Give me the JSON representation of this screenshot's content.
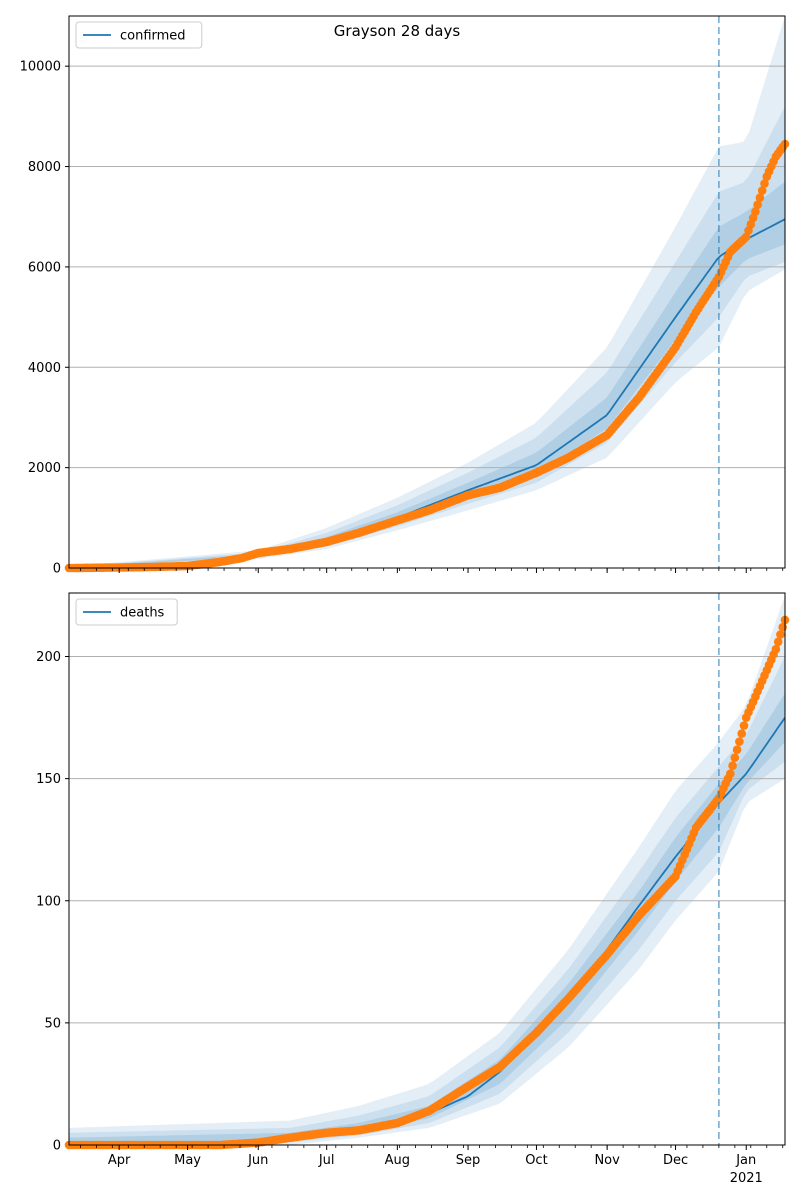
{
  "title": "Grayson 28 days",
  "colors": {
    "line": "#1f77b4",
    "observed": "#ff7f0e",
    "band": "#1f77b4",
    "grid": "#b0b0b0",
    "cutoff": "#1f77b4"
  },
  "x_month_labels": [
    "Apr",
    "May",
    "Jun",
    "Jul",
    "Aug",
    "Sep",
    "Oct",
    "Nov",
    "Dec",
    "Jan"
  ],
  "x_year_label": "2021",
  "chart_data": [
    {
      "type": "line",
      "legend": "confirmed",
      "legend_position": "top-left",
      "grid": "horizontal",
      "x_range": [
        "2020-03-10",
        "2021-01-18"
      ],
      "forecast_start": "2020-12-20",
      "ylim": [
        0,
        11000
      ],
      "y_ticks": [
        0,
        2000,
        4000,
        6000,
        8000,
        10000
      ],
      "model_median": [
        [
          "2020-03-10",
          0
        ],
        [
          "2020-04-15",
          10
        ],
        [
          "2020-05-15",
          60
        ],
        [
          "2020-06-01",
          250
        ],
        [
          "2020-07-01",
          550
        ],
        [
          "2020-08-01",
          1000
        ],
        [
          "2020-09-01",
          1550
        ],
        [
          "2020-10-01",
          2050
        ],
        [
          "2020-11-01",
          3050
        ],
        [
          "2020-12-01",
          5000
        ],
        [
          "2020-12-20",
          6200
        ],
        [
          "2021-01-01",
          6550
        ],
        [
          "2021-01-18",
          6950
        ]
      ],
      "bands": [
        {
          "lower": [
            [
              "2020-03-10",
              0
            ],
            [
              "2020-06-01",
              180
            ],
            [
              "2020-07-01",
              380
            ],
            [
              "2020-08-01",
              750
            ],
            [
              "2020-09-01",
              1150
            ],
            [
              "2020-10-01",
              1550
            ],
            [
              "2020-11-01",
              2200
            ],
            [
              "2020-12-01",
              3700
            ],
            [
              "2020-12-20",
              4400
            ],
            [
              "2021-01-01",
              5500
            ],
            [
              "2021-01-18",
              5950
            ]
          ],
          "upper": [
            [
              "2020-03-10",
              30
            ],
            [
              "2020-06-01",
              350
            ],
            [
              "2020-07-01",
              800
            ],
            [
              "2020-08-01",
              1400
            ],
            [
              "2020-09-01",
              2100
            ],
            [
              "2020-10-01",
              2900
            ],
            [
              "2020-11-01",
              4400
            ],
            [
              "2020-12-01",
              6800
            ],
            [
              "2020-12-20",
              8400
            ],
            [
              "2021-01-01",
              8500
            ],
            [
              "2021-01-18",
              11000
            ]
          ]
        },
        {
          "lower": [
            [
              "2020-03-10",
              0
            ],
            [
              "2020-06-01",
              200
            ],
            [
              "2020-07-01",
              430
            ],
            [
              "2020-08-01",
              830
            ],
            [
              "2020-09-01",
              1280
            ],
            [
              "2020-10-01",
              1700
            ],
            [
              "2020-11-01",
              2500
            ],
            [
              "2020-12-01",
              4100
            ],
            [
              "2020-12-20",
              5000
            ],
            [
              "2021-01-01",
              5800
            ],
            [
              "2021-01-18",
              6100
            ]
          ],
          "upper": [
            [
              "2020-03-10",
              20
            ],
            [
              "2020-06-01",
              310
            ],
            [
              "2020-07-01",
              700
            ],
            [
              "2020-08-01",
              1250
            ],
            [
              "2020-09-01",
              1900
            ],
            [
              "2020-10-01",
              2600
            ],
            [
              "2020-11-01",
              3900
            ],
            [
              "2020-12-01",
              6100
            ],
            [
              "2020-12-20",
              7500
            ],
            [
              "2021-01-01",
              7700
            ],
            [
              "2021-01-18",
              9200
            ]
          ]
        },
        {
          "lower": [
            [
              "2020-03-10",
              0
            ],
            [
              "2020-06-01",
              225
            ],
            [
              "2020-07-01",
              490
            ],
            [
              "2020-08-01",
              910
            ],
            [
              "2020-09-01",
              1420
            ],
            [
              "2020-10-01",
              1880
            ],
            [
              "2020-11-01",
              2780
            ],
            [
              "2020-12-01",
              4550
            ],
            [
              "2020-12-20",
              5600
            ],
            [
              "2021-01-01",
              6150
            ],
            [
              "2021-01-18",
              6450
            ]
          ],
          "upper": [
            [
              "2020-03-10",
              12
            ],
            [
              "2020-06-01",
              280
            ],
            [
              "2020-07-01",
              620
            ],
            [
              "2020-08-01",
              1110
            ],
            [
              "2020-09-01",
              1700
            ],
            [
              "2020-10-01",
              2300
            ],
            [
              "2020-11-01",
              3400
            ],
            [
              "2020-12-01",
              5500
            ],
            [
              "2020-12-20",
              6800
            ],
            [
              "2021-01-01",
              7100
            ],
            [
              "2021-01-18",
              7700
            ]
          ]
        }
      ],
      "observed": [
        [
          "2020-03-10",
          0
        ],
        [
          "2020-04-01",
          10
        ],
        [
          "2020-04-15",
          20
        ],
        [
          "2020-05-01",
          40
        ],
        [
          "2020-05-15",
          120
        ],
        [
          "2020-05-25",
          200
        ],
        [
          "2020-06-01",
          300
        ],
        [
          "2020-06-15",
          380
        ],
        [
          "2020-07-01",
          520
        ],
        [
          "2020-07-15",
          700
        ],
        [
          "2020-08-01",
          950
        ],
        [
          "2020-08-15",
          1150
        ],
        [
          "2020-09-01",
          1450
        ],
        [
          "2020-09-15",
          1600
        ],
        [
          "2020-10-01",
          1900
        ],
        [
          "2020-10-15",
          2200
        ],
        [
          "2020-11-01",
          2650
        ],
        [
          "2020-11-15",
          3400
        ],
        [
          "2020-12-01",
          4400
        ],
        [
          "2020-12-10",
          5100
        ],
        [
          "2020-12-20",
          5800
        ],
        [
          "2020-12-25",
          6300
        ],
        [
          "2021-01-01",
          6600
        ],
        [
          "2021-01-05",
          7100
        ],
        [
          "2021-01-10",
          7800
        ],
        [
          "2021-01-14",
          8200
        ],
        [
          "2021-01-18",
          8450
        ]
      ]
    },
    {
      "type": "line",
      "legend": "deaths",
      "legend_position": "top-left",
      "grid": "horizontal",
      "x_range": [
        "2020-03-10",
        "2021-01-18"
      ],
      "forecast_start": "2020-12-20",
      "ylim": [
        0,
        226
      ],
      "y_ticks": [
        0,
        50,
        100,
        150,
        200
      ],
      "model_median": [
        [
          "2020-03-10",
          0
        ],
        [
          "2020-05-15",
          1
        ],
        [
          "2020-06-15",
          3
        ],
        [
          "2020-07-15",
          7
        ],
        [
          "2020-08-15",
          13
        ],
        [
          "2020-09-01",
          20
        ],
        [
          "2020-09-15",
          30
        ],
        [
          "2020-10-01",
          45
        ],
        [
          "2020-10-15",
          60
        ],
        [
          "2020-11-01",
          80
        ],
        [
          "2020-11-15",
          98
        ],
        [
          "2020-12-01",
          118
        ],
        [
          "2020-12-20",
          140
        ],
        [
          "2021-01-01",
          152
        ],
        [
          "2021-01-18",
          175
        ]
      ],
      "bands": [
        {
          "lower": [
            [
              "2020-03-10",
              0
            ],
            [
              "2020-06-15",
              0
            ],
            [
              "2020-07-15",
              3
            ],
            [
              "2020-08-15",
              7
            ],
            [
              "2020-09-15",
              17
            ],
            [
              "2020-10-15",
              40
            ],
            [
              "2020-11-15",
              72
            ],
            [
              "2020-12-01",
              92
            ],
            [
              "2020-12-20",
              112
            ],
            [
              "2021-01-01",
              140
            ],
            [
              "2021-01-18",
              150
            ]
          ],
          "upper": [
            [
              "2020-03-10",
              7
            ],
            [
              "2020-06-15",
              10
            ],
            [
              "2020-07-15",
              16
            ],
            [
              "2020-08-15",
              25
            ],
            [
              "2020-09-15",
              46
            ],
            [
              "2020-10-15",
              80
            ],
            [
              "2020-11-15",
              122
            ],
            [
              "2020-12-01",
              145
            ],
            [
              "2020-12-20",
              165
            ],
            [
              "2021-01-01",
              180
            ],
            [
              "2021-01-18",
              225
            ]
          ]
        },
        {
          "lower": [
            [
              "2020-03-10",
              0
            ],
            [
              "2020-06-15",
              1
            ],
            [
              "2020-07-15",
              4
            ],
            [
              "2020-08-15",
              9
            ],
            [
              "2020-09-15",
              21
            ],
            [
              "2020-10-15",
              46
            ],
            [
              "2020-11-15",
              80
            ],
            [
              "2020-12-01",
              100
            ],
            [
              "2020-12-20",
              120
            ],
            [
              "2021-01-01",
              145
            ],
            [
              "2021-01-18",
              157
            ]
          ],
          "upper": [
            [
              "2020-03-10",
              5
            ],
            [
              "2020-06-15",
              7
            ],
            [
              "2020-07-15",
              12
            ],
            [
              "2020-08-15",
              20
            ],
            [
              "2020-09-15",
              40
            ],
            [
              "2020-10-15",
              72
            ],
            [
              "2020-11-15",
              112
            ],
            [
              "2020-12-01",
              134
            ],
            [
              "2020-12-20",
              155
            ],
            [
              "2021-01-01",
              168
            ],
            [
              "2021-01-18",
              200
            ]
          ]
        },
        {
          "lower": [
            [
              "2020-03-10",
              0
            ],
            [
              "2020-06-15",
              2
            ],
            [
              "2020-07-15",
              5
            ],
            [
              "2020-08-15",
              11
            ],
            [
              "2020-09-15",
              25
            ],
            [
              "2020-10-15",
              52
            ],
            [
              "2020-11-15",
              88
            ],
            [
              "2020-12-01",
              108
            ],
            [
              "2020-12-20",
              130
            ],
            [
              "2021-01-01",
              148
            ],
            [
              "2021-01-18",
              165
            ]
          ],
          "upper": [
            [
              "2020-03-10",
              3
            ],
            [
              "2020-06-15",
              5
            ],
            [
              "2020-07-15",
              9
            ],
            [
              "2020-08-15",
              16
            ],
            [
              "2020-09-15",
              35
            ],
            [
              "2020-10-15",
              66
            ],
            [
              "2020-11-15",
              104
            ],
            [
              "2020-12-01",
              126
            ],
            [
              "2020-12-20",
              148
            ],
            [
              "2021-01-01",
              160
            ],
            [
              "2021-01-18",
              185
            ]
          ]
        }
      ],
      "observed": [
        [
          "2020-03-10",
          0
        ],
        [
          "2020-05-15",
          0
        ],
        [
          "2020-06-01",
          1
        ],
        [
          "2020-06-15",
          3
        ],
        [
          "2020-07-01",
          5
        ],
        [
          "2020-07-15",
          6
        ],
        [
          "2020-08-01",
          9
        ],
        [
          "2020-08-15",
          14
        ],
        [
          "2020-09-01",
          24
        ],
        [
          "2020-09-15",
          32
        ],
        [
          "2020-10-01",
          46
        ],
        [
          "2020-10-15",
          60
        ],
        [
          "2020-11-01",
          78
        ],
        [
          "2020-11-15",
          94
        ],
        [
          "2020-12-01",
          110
        ],
        [
          "2020-12-10",
          130
        ],
        [
          "2020-12-20",
          142
        ],
        [
          "2020-12-25",
          152
        ],
        [
          "2021-01-01",
          175
        ],
        [
          "2021-01-08",
          190
        ],
        [
          "2021-01-14",
          203
        ],
        [
          "2021-01-18",
          215
        ]
      ]
    }
  ]
}
